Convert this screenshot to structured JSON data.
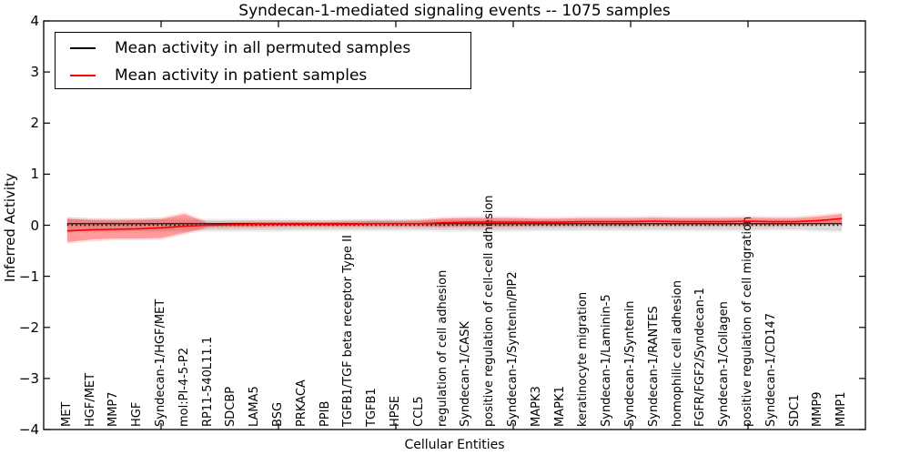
{
  "figure": {
    "title": "Syndecan-1-mediated signaling events -- 1075 samples",
    "xlabel": "Cellular Entities",
    "ylabel": "Inferred Activity"
  },
  "legend": {
    "items": [
      {
        "label": "Mean activity in all permuted samples",
        "color": "#000000"
      },
      {
        "label": "Mean activity in patient samples",
        "color": "#ff0000"
      }
    ]
  },
  "chart_data": {
    "type": "line",
    "title": "Syndecan-1-mediated signaling events -- 1075 samples",
    "xlabel": "Cellular Entities",
    "ylabel": "Inferred Activity",
    "ylim": [
      -4,
      4
    ],
    "xlim": [
      0,
      35
    ],
    "yticks": [
      -4,
      -3,
      -2,
      -1,
      0,
      1,
      2,
      3,
      4
    ],
    "xticks_major": [
      5,
      10,
      15,
      20,
      25,
      30
    ],
    "grid": false,
    "legend_position": "upper left",
    "categories": [
      "MET",
      "HGF/MET",
      "MMP7",
      "HGF",
      "Syndecan-1/HGF/MET",
      "mol:PI-4-5-P2",
      "RP11-540L11.1",
      "SDCBP",
      "LAMA5",
      "BSG",
      "PRKACA",
      "PPIB",
      "TGFB1/TGF beta receptor Type II",
      "TGFB1",
      "HPSE",
      "CCL5",
      "regulation of cell adhesion",
      "Syndecan-1/CASK",
      "positive regulation of cell-cell adhesion",
      "Syndecan-1/Syntenin/PIP2",
      "MAPK3",
      "MAPK1",
      "keratinocyte migration",
      "Syndecan-1/Laminin-5",
      "Syndecan-1/Syntenin",
      "Syndecan-1/RANTES",
      "homophilic cell adhesion",
      "FGFR/FGF2/Syndecan-1",
      "Syndecan-1/Collagen",
      "positive regulation of cell migration",
      "Syndecan-1/CD147",
      "SDC1",
      "MMP9",
      "MMP1"
    ],
    "series": [
      {
        "name": "Mean activity in all permuted samples",
        "color": "#000000",
        "style": "solid",
        "width": 1.2,
        "values": [
          0.03,
          0.03,
          0.03,
          0.03,
          0.03,
          0.03,
          0.03,
          0.03,
          0.03,
          0.03,
          0.03,
          0.03,
          0.03,
          0.03,
          0.03,
          0.03,
          0.03,
          0.03,
          0.03,
          0.03,
          0.03,
          0.03,
          0.03,
          0.03,
          0.03,
          0.03,
          0.03,
          0.03,
          0.03,
          0.03,
          0.03,
          0.03,
          0.03,
          0.03
        ]
      },
      {
        "name": "zero baseline",
        "color": "#000000",
        "style": "dotted",
        "width": 1.5,
        "values": [
          0,
          0,
          0,
          0,
          0,
          0,
          0,
          0,
          0,
          0,
          0,
          0,
          0,
          0,
          0,
          0,
          0,
          0,
          0,
          0,
          0,
          0,
          0,
          0,
          0,
          0,
          0,
          0,
          0,
          0,
          0,
          0,
          0,
          0
        ]
      },
      {
        "name": "Mean activity in patient samples",
        "color": "#ff0000",
        "style": "solid",
        "width": 1.6,
        "values": [
          -0.11,
          -0.09,
          -0.08,
          -0.07,
          -0.05,
          -0.02,
          0.0,
          0.01,
          0.02,
          0.02,
          0.02,
          0.02,
          0.02,
          0.03,
          0.03,
          0.03,
          0.05,
          0.06,
          0.06,
          0.06,
          0.06,
          0.06,
          0.07,
          0.07,
          0.07,
          0.08,
          0.07,
          0.07,
          0.07,
          0.08,
          0.07,
          0.07,
          0.09,
          0.13
        ]
      }
    ],
    "bands": [
      {
        "name": "permuted range",
        "color": "rgba(0,0,0,0.10)",
        "halo_color": "rgba(0,0,0,0.05)",
        "upper": [
          0.12,
          0.11,
          0.11,
          0.11,
          0.11,
          0.1,
          0.1,
          0.1,
          0.1,
          0.1,
          0.09,
          0.09,
          0.09,
          0.09,
          0.09,
          0.09,
          0.1,
          0.1,
          0.1,
          0.1,
          0.09,
          0.09,
          0.09,
          0.09,
          0.09,
          0.09,
          0.09,
          0.09,
          0.09,
          0.09,
          0.08,
          0.08,
          0.09,
          0.09
        ],
        "lower": [
          -0.12,
          -0.11,
          -0.11,
          -0.11,
          -0.11,
          -0.1,
          -0.1,
          -0.1,
          -0.1,
          -0.1,
          -0.09,
          -0.09,
          -0.09,
          -0.09,
          -0.09,
          -0.09,
          -0.1,
          -0.1,
          -0.1,
          -0.1,
          -0.09,
          -0.09,
          -0.09,
          -0.09,
          -0.09,
          -0.09,
          -0.09,
          -0.09,
          -0.09,
          -0.09,
          -0.08,
          -0.08,
          -0.1,
          -0.11
        ]
      },
      {
        "name": "patient range",
        "color": "rgba(255,0,0,0.30)",
        "halo_color": "rgba(255,0,0,0.13)",
        "upper": [
          0.13,
          0.1,
          0.09,
          0.1,
          0.12,
          0.22,
          0.04,
          0.05,
          0.06,
          0.06,
          0.06,
          0.06,
          0.07,
          0.08,
          0.08,
          0.09,
          0.13,
          0.14,
          0.14,
          0.14,
          0.13,
          0.13,
          0.14,
          0.14,
          0.14,
          0.15,
          0.14,
          0.14,
          0.14,
          0.15,
          0.14,
          0.14,
          0.17,
          0.22
        ],
        "lower": [
          -0.33,
          -0.28,
          -0.26,
          -0.26,
          -0.25,
          -0.15,
          -0.04,
          -0.03,
          -0.03,
          -0.02,
          -0.02,
          -0.02,
          -0.02,
          -0.02,
          -0.02,
          -0.02,
          -0.03,
          -0.02,
          -0.02,
          -0.02,
          -0.01,
          -0.01,
          -0.01,
          -0.01,
          -0.01,
          0.0,
          0.0,
          0.0,
          0.0,
          0.01,
          0.0,
          0.01,
          0.02,
          0.04
        ]
      }
    ],
    "band_halo": 0.035
  }
}
